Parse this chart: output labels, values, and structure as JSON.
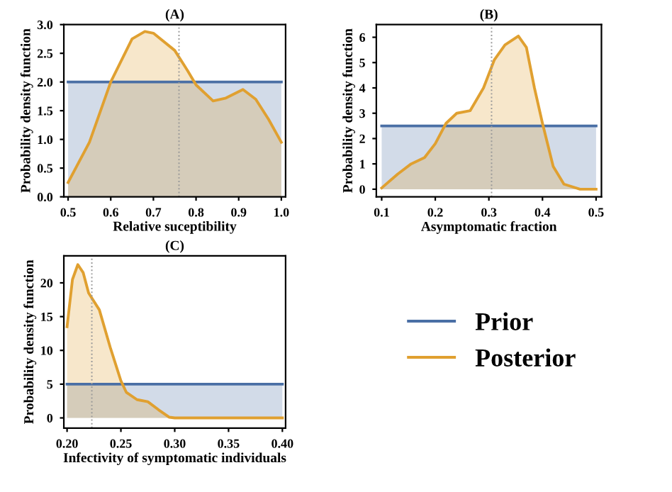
{
  "chart_data": [
    {
      "type": "area",
      "title": "(A)",
      "xlabel": "Relative suceptibility",
      "ylabel": "Probability density function",
      "xlim": [
        0.49,
        1.01
      ],
      "ylim": [
        0,
        3.0
      ],
      "xticks": [
        0.5,
        0.6,
        0.7,
        0.8,
        0.9,
        {
          "value": 1.0,
          "label": "1.0"
        }
      ],
      "yticks": [
        {
          "value": 0,
          "label": "0.0"
        },
        0.5,
        {
          "value": 1,
          "label": "1.0"
        },
        1.5,
        {
          "value": 2,
          "label": "2.0"
        },
        2.5,
        {
          "value": 3,
          "label": "3.0"
        }
      ],
      "series": [
        {
          "color": "#4a6fa5",
          "x": [
            0.5,
            1.0
          ],
          "values": [
            2.0,
            2.0
          ]
        },
        {
          "color": "#e0a030",
          "x": [
            0.5,
            0.55,
            0.6,
            0.65,
            0.68,
            0.7,
            0.75,
            0.78,
            0.8,
            0.84,
            0.87,
            0.91,
            0.94,
            0.97,
            1.0
          ],
          "values": [
            0.25,
            0.95,
            2.0,
            2.75,
            2.88,
            2.85,
            2.55,
            2.2,
            1.95,
            1.67,
            1.72,
            1.87,
            1.7,
            1.35,
            0.95
          ]
        }
      ],
      "ref_lines": [
        {
          "axis": "x",
          "value": 0.76,
          "color": "#999999",
          "line_style": "dotted"
        }
      ]
    },
    {
      "type": "area",
      "title": "(B)",
      "xlabel": "Asymptomatic fraction",
      "ylabel": "Probability density function",
      "xlim": [
        0.09,
        0.51
      ],
      "ylim": [
        -0.3,
        6.5
      ],
      "xticks": [
        0.1,
        0.2,
        0.3,
        0.4,
        0.5
      ],
      "yticks": [
        0,
        1,
        2,
        3,
        4,
        5,
        6
      ],
      "series": [
        {
          "color": "#4a6fa5",
          "x": [
            0.1,
            0.5
          ],
          "values": [
            2.5,
            2.5
          ]
        },
        {
          "color": "#e0a030",
          "x": [
            0.1,
            0.13,
            0.155,
            0.18,
            0.2,
            0.22,
            0.24,
            0.265,
            0.29,
            0.31,
            0.33,
            0.355,
            0.37,
            0.385,
            0.4,
            0.42,
            0.44,
            0.47,
            0.5
          ],
          "values": [
            0.05,
            0.6,
            1.0,
            1.25,
            1.8,
            2.6,
            3.0,
            3.1,
            4.0,
            5.1,
            5.7,
            6.05,
            5.6,
            4.0,
            2.6,
            0.9,
            0.2,
            0.0,
            0.0
          ]
        }
      ],
      "ref_lines": [
        {
          "axis": "x",
          "value": 0.305,
          "color": "#999999",
          "line_style": "dotted"
        }
      ]
    },
    {
      "type": "area",
      "title": "(C)",
      "xlabel": "Infectivity of symptomatic individuals",
      "ylabel": "Probability density function",
      "xlim": [
        0.197,
        0.403
      ],
      "ylim": [
        -1.5,
        24
      ],
      "xticks": [
        {
          "value": 0.2,
          "label": "0.20"
        },
        0.25,
        {
          "value": 0.3,
          "label": "0.30"
        },
        0.35,
        {
          "value": 0.4,
          "label": "0.40"
        }
      ],
      "yticks": [
        0,
        5,
        10,
        15,
        20
      ],
      "series": [
        {
          "name": "Prior",
          "color": "#4a6fa5",
          "x": [
            0.2,
            0.4
          ],
          "values": [
            5,
            5
          ]
        },
        {
          "name": "Posterior",
          "color": "#e0a030",
          "x": [
            0.2,
            0.205,
            0.21,
            0.215,
            0.22,
            0.23,
            0.24,
            0.25,
            0.255,
            0.265,
            0.275,
            0.285,
            0.295,
            0.3,
            0.35,
            0.4
          ],
          "values": [
            13.5,
            20.5,
            22.7,
            21.5,
            18.5,
            16,
            10.5,
            5.5,
            3.8,
            2.7,
            2.4,
            1.2,
            0.1,
            0,
            0,
            0
          ]
        }
      ],
      "ref_lines": [
        {
          "axis": "x",
          "value": 0.223,
          "color": "#999999",
          "line_style": "dotted"
        }
      ],
      "legend": "right"
    }
  ]
}
